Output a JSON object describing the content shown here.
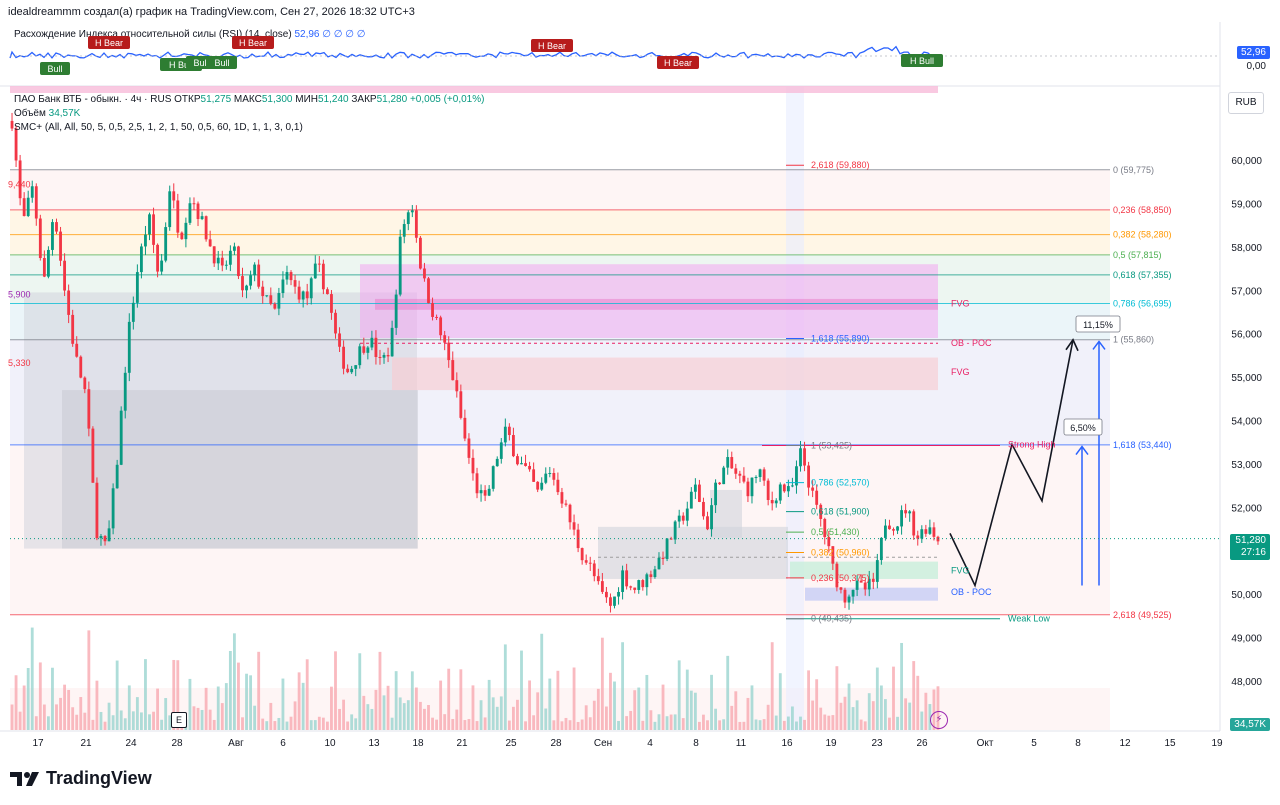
{
  "header": "idealdreammm создал(а) график на TradingView.com, Сен 27, 2026 18:32 UTC+3",
  "rsi": {
    "title": "Расхождение Индекса относительной силы (RSI) (14, close)",
    "values": "52,96 ∅ ∅ ∅ ∅",
    "last": "52,96",
    "zero": "0,00",
    "labels": [
      {
        "text": "H Bear",
        "type": "bear"
      },
      {
        "text": "Bull",
        "type": "bull"
      },
      {
        "text": "H Bear",
        "type": "bear"
      },
      {
        "text": "H Bull",
        "type": "bull"
      },
      {
        "text": "Bull",
        "type": "bull"
      },
      {
        "text": "Bull",
        "type": "bull"
      },
      {
        "text": "H Bear",
        "type": "bear"
      },
      {
        "text": "H Bear",
        "type": "bear"
      },
      {
        "text": "H Bull",
        "type": "bull"
      },
      {
        "text": "H Bull",
        "type": "bull"
      }
    ]
  },
  "legend": {
    "symbol": "ПАО Банк ВТБ - обыкн. · 4ч · RUS",
    "ohlc_o_label": "ОТКР",
    "ohlc_o": "51,275",
    "ohlc_h_label": "МАКС",
    "ohlc_h": "51,300",
    "ohlc_l_label": "МИН",
    "ohlc_l": "51,240",
    "ohlc_c_label": "ЗАКР",
    "ohlc_c": "51,280",
    "change": "+0,005 (+0,01%)",
    "volume_label": "Объём",
    "volume": "34,57K",
    "smc": "SMC+ (All, All, 50, 5, 0,5, 2,5, 1, 2, 1, 50, 0,5, 60, 1D, 1, 1, 3, 0,1)"
  },
  "currency": "RUB",
  "price_axis": [
    "60,000",
    "59,000",
    "58,000",
    "57,000",
    "56,000",
    "55,000",
    "54,000",
    "53,000",
    "52,000",
    "51,000",
    "50,000",
    "49,000",
    "48,000"
  ],
  "last_price": "51,280",
  "countdown": "27:16",
  "volume_badge": "34,57K",
  "time_axis": [
    "17",
    "21",
    "24",
    "28",
    "Авг",
    "6",
    "10",
    "13",
    "18",
    "21",
    "25",
    "28",
    "Сен",
    "4",
    "8",
    "11",
    "16",
    "19",
    "23",
    "26",
    "Окт",
    "5",
    "8",
    "12",
    "15",
    "19"
  ],
  "fib_right": [
    {
      "text": "0 (59,775)",
      "price": 59.775,
      "color": "#787b86"
    },
    {
      "text": "0,236 (58,850)",
      "price": 58.85,
      "color": "#f23645"
    },
    {
      "text": "0,382 (58,280)",
      "price": 58.28,
      "color": "#ff9800"
    },
    {
      "text": "0,5 (57,815)",
      "price": 57.815,
      "color": "#4caf50"
    },
    {
      "text": "0,618 (57,355)",
      "price": 57.355,
      "color": "#089981"
    },
    {
      "text": "0,786 (56,695)",
      "price": 56.695,
      "color": "#00bcd4"
    },
    {
      "text": "1 (55,860)",
      "price": 55.86,
      "color": "#787b86"
    },
    {
      "text": "1,618 (53,440)",
      "price": 53.44,
      "color": "#2962ff"
    },
    {
      "text": "2,618 (49,525)",
      "price": 49.525,
      "color": "#f23645"
    }
  ],
  "fib_mid": [
    {
      "text": "2,618 (59,880)",
      "price": 59.88,
      "color": "#f23645"
    },
    {
      "text": "1,618 (55,890)",
      "price": 55.89,
      "color": "#2962ff"
    },
    {
      "text": "1 (53,425)",
      "price": 53.425,
      "color": "#787b86"
    },
    {
      "text": "0,786 (52,570)",
      "price": 52.57,
      "color": "#00bcd4"
    },
    {
      "text": "0,618 (51,900)",
      "price": 51.9,
      "color": "#089981"
    },
    {
      "text": "0,5 (51,430)",
      "price": 51.43,
      "color": "#4caf50"
    },
    {
      "text": "0,382 (50,960)",
      "price": 50.96,
      "color": "#ff9800"
    },
    {
      "text": "0,236 (50,375)",
      "price": 50.375,
      "color": "#f23645"
    },
    {
      "text": "0 (49,435)",
      "price": 49.435,
      "color": "#787b86"
    }
  ],
  "left_labels": [
    {
      "text": "9,440",
      "price": 59.44,
      "color": "#f23645"
    },
    {
      "text": "5,900",
      "price": 56.9,
      "color": "#9c27b0"
    },
    {
      "text": "5,330",
      "price": 55.33,
      "color": "#f23645"
    }
  ],
  "smc_labels": [
    {
      "text": "FVG",
      "price": 56.7,
      "color": "#e91e63"
    },
    {
      "text": "OB - POC",
      "price": 55.78,
      "color": "#e91e63"
    },
    {
      "text": "FVG",
      "price": 55.12,
      "color": "#e91e63"
    },
    {
      "text": "Strong High",
      "price": 53.45,
      "color": "#e91e63"
    },
    {
      "text": "FVG",
      "price": 50.55,
      "color": "#089981"
    },
    {
      "text": "OB - POC",
      "price": 50.05,
      "color": "#2962ff"
    },
    {
      "text": "Weak Low",
      "price": 49.44,
      "color": "#089981"
    }
  ],
  "projection_labels": [
    "11,15%",
    "6,50%"
  ],
  "logo": "TradingView",
  "e_button": "E",
  "chart_data": {
    "type": "candlestick",
    "ylim": [
      47.25,
      61.05
    ],
    "x_range": [
      "17 Jul",
      "19 Oct"
    ],
    "key_levels": {
      "range_high": 59.775,
      "range_low": 49.525,
      "strong_high": 53.425,
      "weak_low": 49.435,
      "last_close": 51.28
    },
    "path_closes": [
      60.9,
      58.5,
      59.4,
      57.1,
      58.9,
      57.0,
      55.5,
      54.6,
      51.5,
      51.0,
      53.1,
      55.9,
      57.6,
      58.7,
      57.2,
      59.4,
      58.2,
      59.2,
      58.6,
      57.9,
      57.4,
      58.0,
      56.8,
      57.5,
      56.8,
      56.5,
      57.4,
      57.0,
      56.8,
      57.6,
      56.9,
      55.6,
      55.1,
      55.6,
      55.9,
      55.3,
      55.7,
      58.4,
      59.0,
      57.3,
      56.5,
      55.8,
      54.9,
      53.6,
      52.5,
      52.1,
      53.1,
      53.8,
      53.1,
      52.8,
      52.3,
      52.9,
      52.4,
      51.7,
      51.0,
      50.6,
      50.0,
      49.7,
      50.5,
      50.1,
      50.3,
      50.6,
      51.0,
      51.5,
      51.9,
      52.5,
      51.5,
      52.6,
      53.0,
      52.7,
      52.4,
      52.9,
      52.0,
      52.5,
      52.3,
      53.3,
      52.3,
      51.6,
      50.6,
      49.9,
      50.2,
      50.1,
      50.3,
      51.7,
      51.6,
      52.0,
      51.3,
      51.6,
      51.28
    ],
    "projection": [
      51.4,
      50.2,
      53.45,
      52.15,
      55.86
    ]
  }
}
